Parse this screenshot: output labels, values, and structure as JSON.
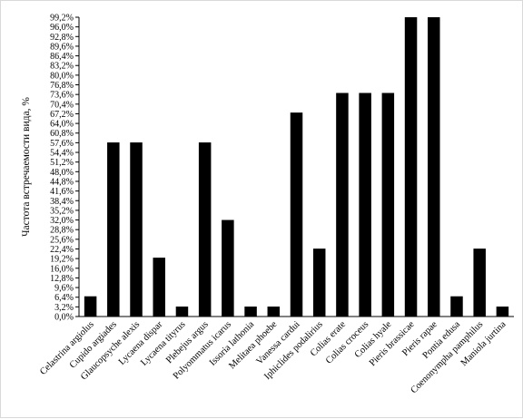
{
  "chart_data": {
    "type": "bar",
    "title": "",
    "xlabel": "",
    "ylabel": "Частота встречаемости вида, %",
    "ylim": [
      0,
      99.2
    ],
    "y_ticks": [
      "0,0%",
      "3,2%",
      "6,4%",
      "9,6%",
      "12,8%",
      "16,0%",
      "19,2%",
      "22,4%",
      "25,6%",
      "28,8%",
      "32,0%",
      "35,2%",
      "38,4%",
      "41,6%",
      "44,8%",
      "48,0%",
      "51,2%",
      "54,4%",
      "57,6%",
      "60,8%",
      "64,0%",
      "67,2%",
      "70,4%",
      "73,6%",
      "76,8%",
      "80,0%",
      "83,2%",
      "86,4%",
      "89,6%",
      "92,8%",
      "96,0%",
      "99,2%"
    ],
    "y_tick_values": [
      0,
      3.2,
      6.4,
      9.6,
      12.8,
      16,
      19.2,
      22.4,
      25.6,
      28.8,
      32,
      35.2,
      38.4,
      41.6,
      44.8,
      48,
      51.2,
      54.4,
      57.6,
      60.8,
      64,
      67.2,
      70.4,
      73.6,
      76.8,
      80,
      83.2,
      86.4,
      89.6,
      92.8,
      96,
      99.2
    ],
    "grid": false,
    "legend": "none",
    "bar_color": "#000000",
    "categories": [
      "Celastrina argiolus",
      "Cupido argiades",
      "Glaucopsyche alexis",
      "Lycaena dispar",
      "Lycaena tityrus",
      "Plebejus argus",
      "Polyommatus icarus",
      "Issoria lathonia",
      "Melitaea phoebe",
      "Vanessa cardui",
      "Iphiclides podalirius",
      "Colias erate",
      "Colias croceus",
      "Colias hyale",
      "Pieris brassicae",
      "Pieris rapae",
      "Pontia edusa",
      "Coenonympha pamphilus",
      "Maniola jurtina"
    ],
    "values": [
      6.7,
      57.7,
      57.7,
      19.5,
      3.3,
      57.7,
      32.0,
      3.3,
      3.3,
      67.6,
      22.5,
      74.1,
      74.1,
      74.1,
      99.2,
      99.2,
      6.7,
      22.5,
      3.3
    ]
  }
}
